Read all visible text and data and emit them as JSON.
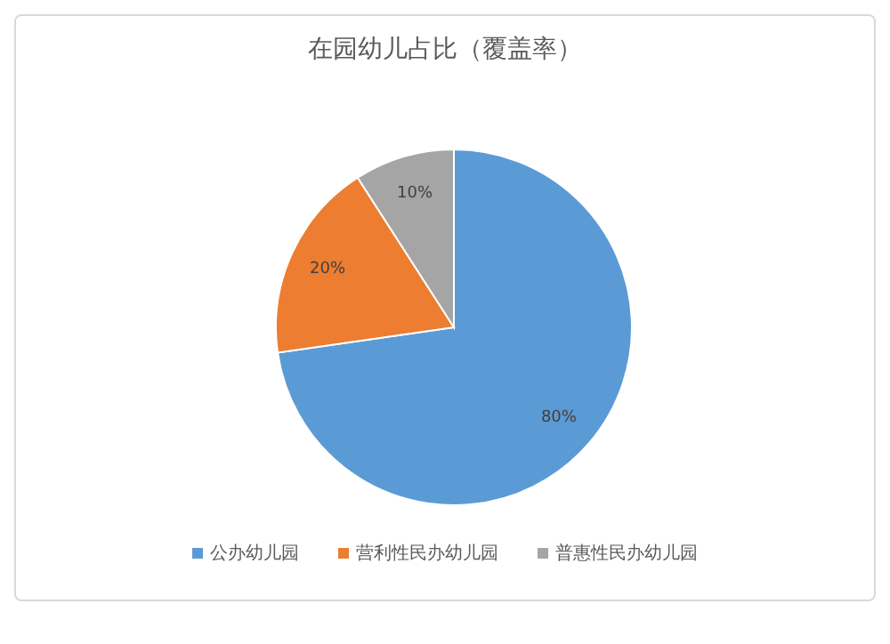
{
  "chart_data": {
    "type": "pie",
    "title": "在园幼儿占比（覆盖率）",
    "categories": [
      "公办幼儿园",
      "营利性民办幼儿园",
      "普惠性民办幼儿园"
    ],
    "values": [
      80,
      20,
      10
    ],
    "value_labels": [
      "80%",
      "20%",
      "10%"
    ],
    "colors": [
      "#5b9bd5",
      "#ed7d31",
      "#a5a5a5"
    ],
    "legend": "bottom"
  }
}
